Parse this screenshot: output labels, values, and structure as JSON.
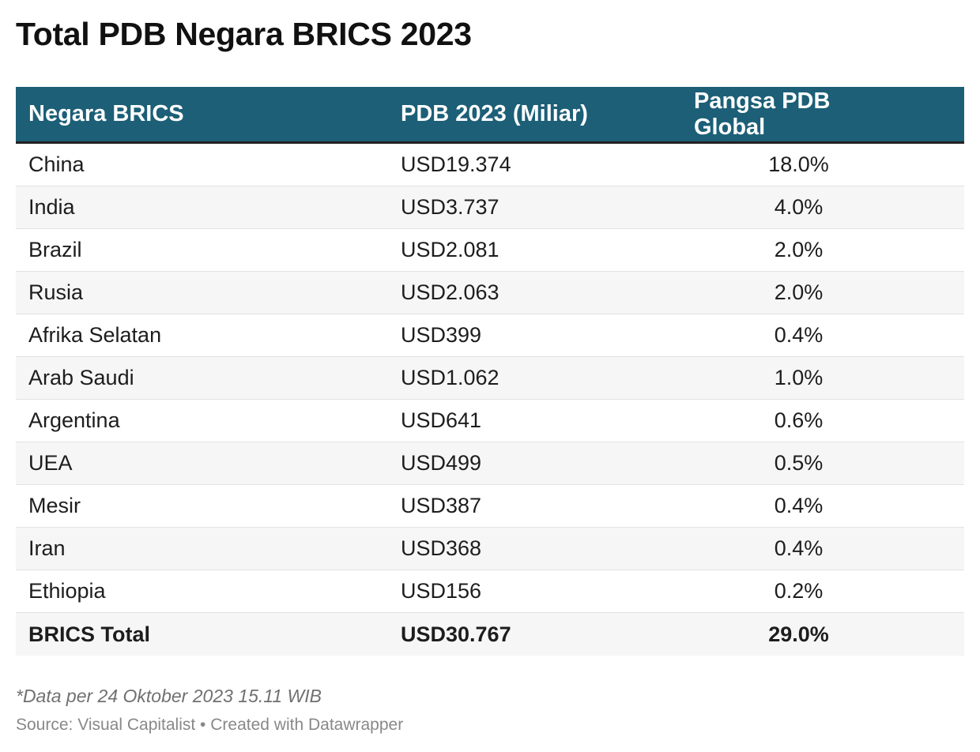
{
  "title": "Total PDB Negara BRICS 2023",
  "colors": {
    "header_bg": "#1c5f77",
    "header_text": "#ffffff",
    "row_alt_bg": "#f6f6f6",
    "note_text": "#707070"
  },
  "chart_data": {
    "type": "table",
    "title": "Total PDB Negara BRICS 2023",
    "columns": [
      "Negara BRICS",
      "PDB 2023 (Miliar)",
      "Pangsa PDB Global"
    ],
    "rows": [
      [
        "China",
        "USD19.374",
        "18.0%"
      ],
      [
        "India",
        "USD3.737",
        "4.0%"
      ],
      [
        "Brazil",
        "USD2.081",
        "2.0%"
      ],
      [
        "Rusia",
        "USD2.063",
        "2.0%"
      ],
      [
        "Afrika Selatan",
        "USD399",
        "0.4%"
      ],
      [
        "Arab Saudi",
        "USD1.062",
        "1.0%"
      ],
      [
        "Argentina",
        "USD641",
        "0.6%"
      ],
      [
        "UEA",
        "USD499",
        "0.5%"
      ],
      [
        "Mesir",
        "USD387",
        "0.4%"
      ],
      [
        "Iran",
        "USD368",
        "0.4%"
      ],
      [
        "Ethiopia",
        "USD156",
        "0.2%"
      ]
    ],
    "total": [
      "BRICS Total",
      "USD30.767",
      "29.0%"
    ]
  },
  "footer": {
    "note": "*Data per 24 Oktober 2023 15.11 WIB",
    "source": "Source: Visual Capitalist • Created with Datawrapper"
  }
}
